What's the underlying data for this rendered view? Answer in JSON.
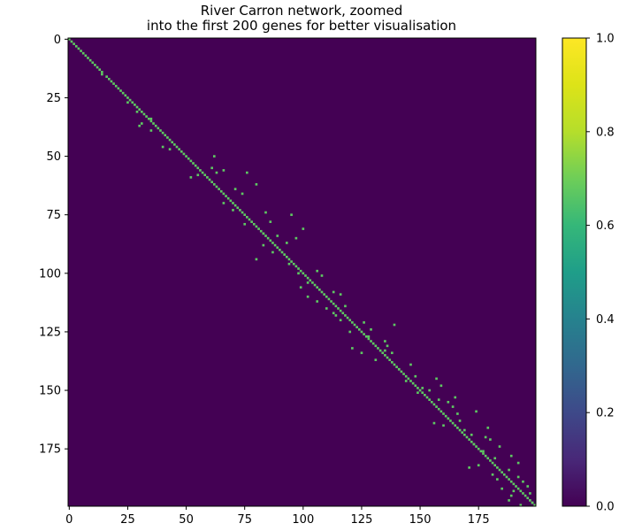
{
  "chart_data": {
    "type": "heatmap",
    "title_lines": [
      "River Carron network, zoomed",
      "into the first 200 genes for better visualisation"
    ],
    "xlabel": "",
    "ylabel": "",
    "matrix_size": 200,
    "xlim": [
      0,
      200
    ],
    "ylim": [
      200,
      0
    ],
    "x_ticks": [
      0,
      25,
      50,
      75,
      100,
      125,
      150,
      175
    ],
    "y_ticks": [
      0,
      25,
      50,
      75,
      100,
      125,
      150,
      175
    ],
    "colorbar": {
      "min": 0.0,
      "max": 1.0,
      "ticks": [
        "0.0",
        "0.2",
        "0.4",
        "0.6",
        "0.8",
        "1.0"
      ],
      "colormap": "viridis"
    },
    "background_value": 0.0,
    "cell_value": 0.63,
    "colors": {
      "background": "#440154",
      "cell": "#5ec962"
    },
    "nonzero_cells": [
      [
        0,
        0
      ],
      [
        1,
        1
      ],
      [
        2,
        2
      ],
      [
        3,
        3
      ],
      [
        4,
        4
      ],
      [
        5,
        5
      ],
      [
        6,
        6
      ],
      [
        7,
        7
      ],
      [
        8,
        8
      ],
      [
        9,
        9
      ],
      [
        10,
        10
      ],
      [
        11,
        11
      ],
      [
        12,
        12
      ],
      [
        13,
        13
      ],
      [
        14,
        14
      ],
      [
        16,
        16
      ],
      [
        17,
        17
      ],
      [
        18,
        18
      ],
      [
        19,
        19
      ],
      [
        20,
        20
      ],
      [
        21,
        21
      ],
      [
        22,
        22
      ],
      [
        23,
        23
      ],
      [
        24,
        24
      ],
      [
        25,
        25
      ],
      [
        26,
        26
      ],
      [
        27,
        27
      ],
      [
        28,
        28
      ],
      [
        29,
        29
      ],
      [
        30,
        30
      ],
      [
        31,
        31
      ],
      [
        32,
        32
      ],
      [
        33,
        33
      ],
      [
        34,
        34
      ],
      [
        35,
        35
      ],
      [
        36,
        36
      ],
      [
        37,
        37
      ],
      [
        38,
        38
      ],
      [
        39,
        39
      ],
      [
        40,
        40
      ],
      [
        41,
        41
      ],
      [
        42,
        42
      ],
      [
        43,
        43
      ],
      [
        44,
        44
      ],
      [
        45,
        45
      ],
      [
        46,
        46
      ],
      [
        47,
        47
      ],
      [
        48,
        48
      ],
      [
        49,
        49
      ],
      [
        50,
        50
      ],
      [
        51,
        51
      ],
      [
        52,
        52
      ],
      [
        53,
        53
      ],
      [
        54,
        54
      ],
      [
        55,
        55
      ],
      [
        56,
        56
      ],
      [
        57,
        57
      ],
      [
        58,
        58
      ],
      [
        59,
        59
      ],
      [
        60,
        60
      ],
      [
        61,
        61
      ],
      [
        62,
        62
      ],
      [
        63,
        63
      ],
      [
        64,
        64
      ],
      [
        65,
        65
      ],
      [
        66,
        66
      ],
      [
        67,
        67
      ],
      [
        68,
        68
      ],
      [
        69,
        69
      ],
      [
        70,
        70
      ],
      [
        71,
        71
      ],
      [
        72,
        72
      ],
      [
        73,
        73
      ],
      [
        74,
        74
      ],
      [
        75,
        75
      ],
      [
        76,
        76
      ],
      [
        77,
        77
      ],
      [
        78,
        78
      ],
      [
        79,
        79
      ],
      [
        80,
        80
      ],
      [
        81,
        81
      ],
      [
        82,
        82
      ],
      [
        83,
        83
      ],
      [
        84,
        84
      ],
      [
        85,
        85
      ],
      [
        86,
        86
      ],
      [
        87,
        87
      ],
      [
        88,
        88
      ],
      [
        89,
        89
      ],
      [
        90,
        90
      ],
      [
        91,
        91
      ],
      [
        92,
        92
      ],
      [
        93,
        93
      ],
      [
        94,
        94
      ],
      [
        95,
        95
      ],
      [
        96,
        96
      ],
      [
        97,
        97
      ],
      [
        98,
        98
      ],
      [
        99,
        99
      ],
      [
        100,
        100
      ],
      [
        101,
        101
      ],
      [
        102,
        102
      ],
      [
        103,
        103
      ],
      [
        104,
        104
      ],
      [
        105,
        105
      ],
      [
        106,
        106
      ],
      [
        107,
        107
      ],
      [
        108,
        108
      ],
      [
        109,
        109
      ],
      [
        110,
        110
      ],
      [
        111,
        111
      ],
      [
        112,
        112
      ],
      [
        113,
        113
      ],
      [
        114,
        114
      ],
      [
        115,
        115
      ],
      [
        116,
        116
      ],
      [
        117,
        117
      ],
      [
        118,
        118
      ],
      [
        119,
        119
      ],
      [
        120,
        120
      ],
      [
        121,
        121
      ],
      [
        122,
        122
      ],
      [
        123,
        123
      ],
      [
        124,
        124
      ],
      [
        125,
        125
      ],
      [
        126,
        126
      ],
      [
        127,
        127
      ],
      [
        128,
        128
      ],
      [
        129,
        129
      ],
      [
        130,
        130
      ],
      [
        131,
        131
      ],
      [
        132,
        132
      ],
      [
        133,
        133
      ],
      [
        134,
        134
      ],
      [
        135,
        135
      ],
      [
        136,
        136
      ],
      [
        137,
        137
      ],
      [
        138,
        138
      ],
      [
        139,
        139
      ],
      [
        140,
        140
      ],
      [
        141,
        141
      ],
      [
        142,
        142
      ],
      [
        143,
        143
      ],
      [
        144,
        144
      ],
      [
        145,
        145
      ],
      [
        146,
        146
      ],
      [
        147,
        147
      ],
      [
        148,
        148
      ],
      [
        149,
        149
      ],
      [
        150,
        150
      ],
      [
        151,
        151
      ],
      [
        152,
        152
      ],
      [
        153,
        153
      ],
      [
        154,
        154
      ],
      [
        155,
        155
      ],
      [
        156,
        156
      ],
      [
        157,
        157
      ],
      [
        158,
        158
      ],
      [
        159,
        159
      ],
      [
        160,
        160
      ],
      [
        161,
        161
      ],
      [
        162,
        162
      ],
      [
        163,
        163
      ],
      [
        164,
        164
      ],
      [
        165,
        165
      ],
      [
        166,
        166
      ],
      [
        167,
        167
      ],
      [
        168,
        168
      ],
      [
        169,
        169
      ],
      [
        170,
        170
      ],
      [
        171,
        171
      ],
      [
        172,
        172
      ],
      [
        173,
        173
      ],
      [
        174,
        174
      ],
      [
        175,
        175
      ],
      [
        176,
        176
      ],
      [
        177,
        177
      ],
      [
        178,
        178
      ],
      [
        179,
        179
      ],
      [
        180,
        180
      ],
      [
        181,
        181
      ],
      [
        182,
        182
      ],
      [
        183,
        183
      ],
      [
        184,
        184
      ],
      [
        185,
        185
      ],
      [
        186,
        186
      ],
      [
        187,
        187
      ],
      [
        188,
        188
      ],
      [
        189,
        189
      ],
      [
        190,
        190
      ],
      [
        191,
        191
      ],
      [
        192,
        192
      ],
      [
        193,
        193
      ],
      [
        194,
        194
      ],
      [
        195,
        195
      ],
      [
        196,
        196
      ],
      [
        197,
        197
      ],
      [
        198,
        198
      ],
      [
        199,
        199
      ],
      [
        15,
        14
      ],
      [
        27,
        25
      ],
      [
        31,
        29
      ],
      [
        34,
        35
      ],
      [
        36,
        31
      ],
      [
        37,
        30
      ],
      [
        39,
        35
      ],
      [
        46,
        40
      ],
      [
        47,
        43
      ],
      [
        50,
        62
      ],
      [
        55,
        61
      ],
      [
        56,
        66
      ],
      [
        57,
        63
      ],
      [
        58,
        55
      ],
      [
        59,
        52
      ],
      [
        57,
        76
      ],
      [
        62,
        80
      ],
      [
        64,
        71
      ],
      [
        66,
        74
      ],
      [
        70,
        66
      ],
      [
        73,
        70
      ],
      [
        74,
        84
      ],
      [
        75,
        95
      ],
      [
        78,
        86
      ],
      [
        79,
        75
      ],
      [
        81,
        100
      ],
      [
        83,
        83
      ],
      [
        84,
        89
      ],
      [
        85,
        97
      ],
      [
        87,
        93
      ],
      [
        88,
        83
      ],
      [
        91,
        87
      ],
      [
        94,
        80
      ],
      [
        96,
        94
      ],
      [
        99,
        106
      ],
      [
        100,
        98
      ],
      [
        101,
        108
      ],
      [
        104,
        102
      ],
      [
        106,
        99
      ],
      [
        108,
        113
      ],
      [
        109,
        116
      ],
      [
        110,
        102
      ],
      [
        112,
        106
      ],
      [
        114,
        118
      ],
      [
        115,
        110
      ],
      [
        117,
        113
      ],
      [
        118,
        114
      ],
      [
        120,
        116
      ],
      [
        121,
        126
      ],
      [
        122,
        139
      ],
      [
        124,
        129
      ],
      [
        125,
        120
      ],
      [
        127,
        128
      ],
      [
        129,
        135
      ],
      [
        131,
        136
      ],
      [
        133,
        135
      ],
      [
        134,
        138
      ],
      [
        137,
        131
      ],
      [
        139,
        146
      ],
      [
        141,
        141
      ],
      [
        132,
        121
      ],
      [
        134,
        125
      ],
      [
        144,
        148
      ],
      [
        145,
        157
      ],
      [
        146,
        144
      ],
      [
        148,
        159
      ],
      [
        149,
        151
      ],
      [
        150,
        154
      ],
      [
        151,
        149
      ],
      [
        153,
        165
      ],
      [
        154,
        158
      ],
      [
        155,
        162
      ],
      [
        157,
        164
      ],
      [
        159,
        174
      ],
      [
        160,
        166
      ],
      [
        162,
        162
      ],
      [
        163,
        167
      ],
      [
        164,
        156
      ],
      [
        165,
        160
      ],
      [
        166,
        179
      ],
      [
        167,
        169
      ],
      [
        169,
        172
      ],
      [
        170,
        178
      ],
      [
        171,
        180
      ],
      [
        173,
        173
      ],
      [
        174,
        184
      ],
      [
        176,
        177
      ],
      [
        178,
        189
      ],
      [
        179,
        182
      ],
      [
        181,
        192
      ],
      [
        182,
        175
      ],
      [
        183,
        171
      ],
      [
        184,
        188
      ],
      [
        186,
        181
      ],
      [
        187,
        192
      ],
      [
        188,
        183
      ],
      [
        189,
        194
      ],
      [
        191,
        196
      ],
      [
        192,
        185
      ],
      [
        193,
        190
      ],
      [
        194,
        197
      ],
      [
        195,
        189
      ],
      [
        197,
        188
      ],
      [
        198,
        198
      ],
      [
        199,
        193
      ]
    ]
  }
}
